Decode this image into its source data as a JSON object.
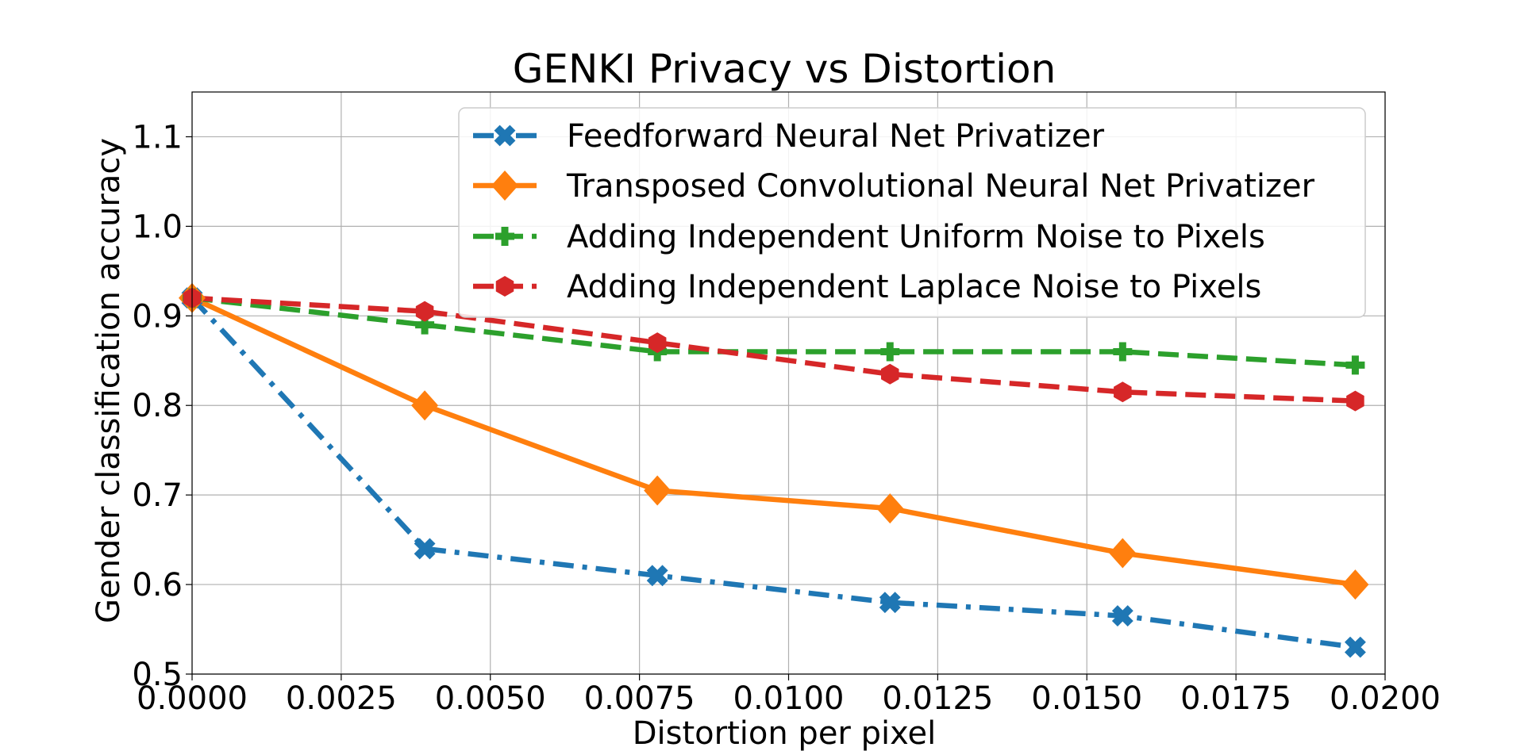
{
  "chart_data": {
    "type": "line",
    "title": "GENKI Privacy vs Distortion",
    "xlabel": "Distortion per pixel",
    "ylabel": "Gender classification accuracy",
    "xlim": [
      0.0,
      0.02
    ],
    "ylim": [
      0.5,
      1.15
    ],
    "grid": true,
    "legend_position": "top-right",
    "x_ticks": [
      0.0,
      0.0025,
      0.005,
      0.0075,
      0.01,
      0.0125,
      0.015,
      0.0175,
      0.02
    ],
    "x_tick_labels": [
      "0.0000",
      "0.0025",
      "0.0050",
      "0.0075",
      "0.0100",
      "0.0125",
      "0.0150",
      "0.0175",
      "0.0200"
    ],
    "y_ticks": [
      0.5,
      0.6,
      0.7,
      0.8,
      0.9,
      1.0,
      1.1
    ],
    "y_tick_labels": [
      "0.5",
      "0.6",
      "0.7",
      "0.8",
      "0.9",
      "1.0",
      "1.1"
    ],
    "x": [
      0.0,
      0.0039,
      0.0078,
      0.0117,
      0.0156,
      0.0195
    ],
    "series": [
      {
        "name": "Feedforward Neural Net Privatizer",
        "values": [
          0.92,
          0.64,
          0.61,
          0.58,
          0.565,
          0.53
        ],
        "color": "#1f77b4",
        "line": "dashdot",
        "marker": "x-filled"
      },
      {
        "name": "Transposed Convolutional Neural Net Privatizer",
        "values": [
          0.92,
          0.8,
          0.705,
          0.685,
          0.635,
          0.6
        ],
        "color": "#ff7f0e",
        "line": "solid",
        "marker": "diamond"
      },
      {
        "name": "Adding Independent Uniform Noise to Pixels",
        "values": [
          0.92,
          0.89,
          0.86,
          0.86,
          0.86,
          0.845
        ],
        "color": "#2ca02c",
        "line": "dashed",
        "marker": "plus-filled"
      },
      {
        "name": "Adding Independent Laplace Noise to Pixels",
        "values": [
          0.92,
          0.905,
          0.87,
          0.835,
          0.815,
          0.805
        ],
        "color": "#d62728",
        "line": "dashed",
        "marker": "hexagon"
      }
    ]
  }
}
